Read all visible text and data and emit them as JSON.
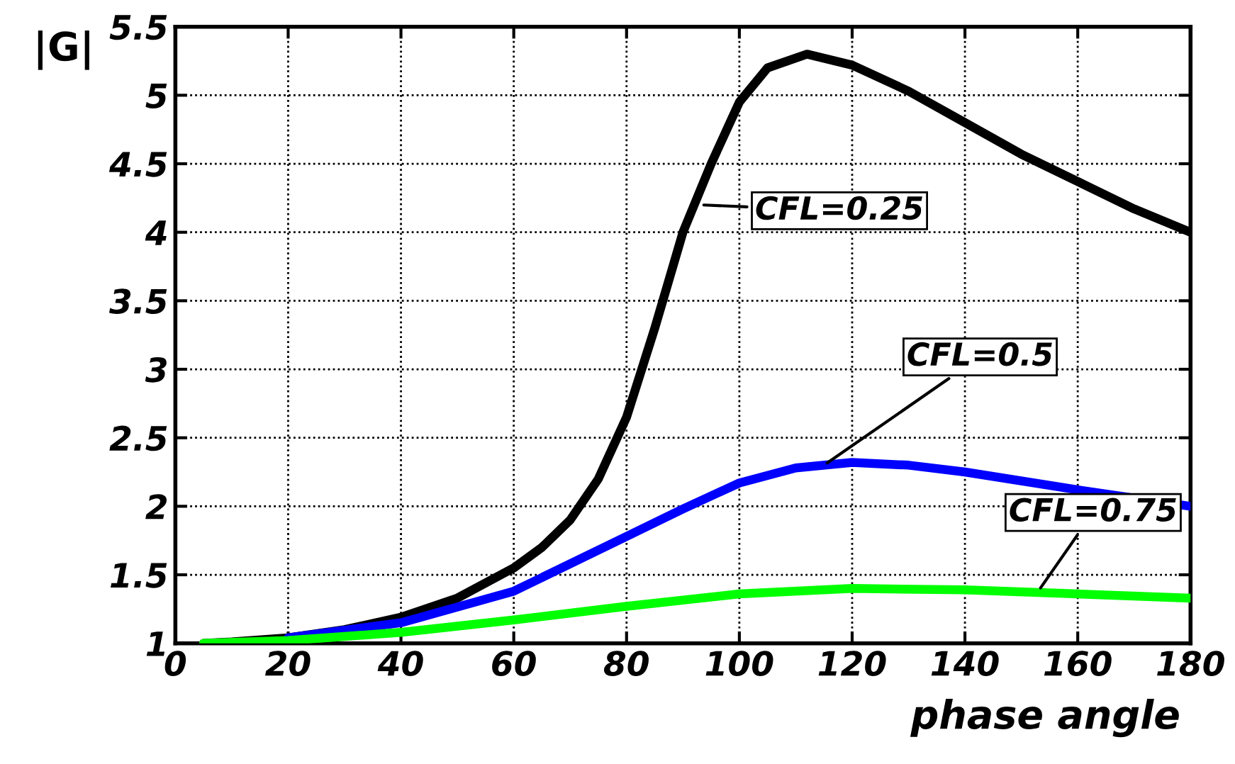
{
  "chart_data": {
    "type": "line",
    "xlabel": "phase angle",
    "ylabel": "|G|",
    "xlim": [
      0,
      180
    ],
    "ylim": [
      1,
      5.5
    ],
    "xticks": [
      0,
      20,
      40,
      60,
      80,
      100,
      120,
      140,
      160,
      180
    ],
    "yticks": [
      1,
      1.5,
      2,
      2.5,
      3,
      3.5,
      4,
      4.5,
      5,
      5.5
    ],
    "grid": true,
    "line_style": "solid",
    "marker": "none",
    "series": [
      {
        "color": "#000000",
        "x": [
          5,
          10,
          20,
          30,
          40,
          50,
          60,
          65,
          70,
          75,
          80,
          85,
          90,
          95,
          100,
          105,
          112,
          120,
          130,
          140,
          150,
          160,
          170,
          180
        ],
        "values": [
          1.0,
          1.01,
          1.04,
          1.1,
          1.19,
          1.33,
          1.55,
          1.7,
          1.9,
          2.2,
          2.65,
          3.3,
          4.0,
          4.5,
          4.95,
          5.2,
          5.3,
          5.22,
          5.03,
          4.8,
          4.57,
          4.37,
          4.17,
          4.0
        ]
      },
      {
        "color": "#0000ff",
        "x": [
          20,
          40,
          60,
          80,
          90,
          100,
          110,
          120,
          130,
          140,
          160,
          180
        ],
        "values": [
          1.04,
          1.15,
          1.38,
          1.78,
          1.98,
          2.17,
          2.28,
          2.32,
          2.3,
          2.25,
          2.12,
          2.0
        ]
      },
      {
        "color": "#00ff00",
        "x": [
          5,
          20,
          40,
          60,
          80,
          100,
          120,
          140,
          160,
          180
        ],
        "values": [
          1.0,
          1.02,
          1.08,
          1.17,
          1.27,
          1.36,
          1.4,
          1.39,
          1.36,
          1.33
        ]
      }
    ],
    "annotations": [
      {
        "text": "CFL=0.25",
        "x": 93,
        "y": 4.2
      },
      {
        "text": "CFL=0.5",
        "x": 115,
        "y": 2.3
      },
      {
        "text": "CFL=0.75",
        "x": 153,
        "y": 1.38
      }
    ]
  }
}
